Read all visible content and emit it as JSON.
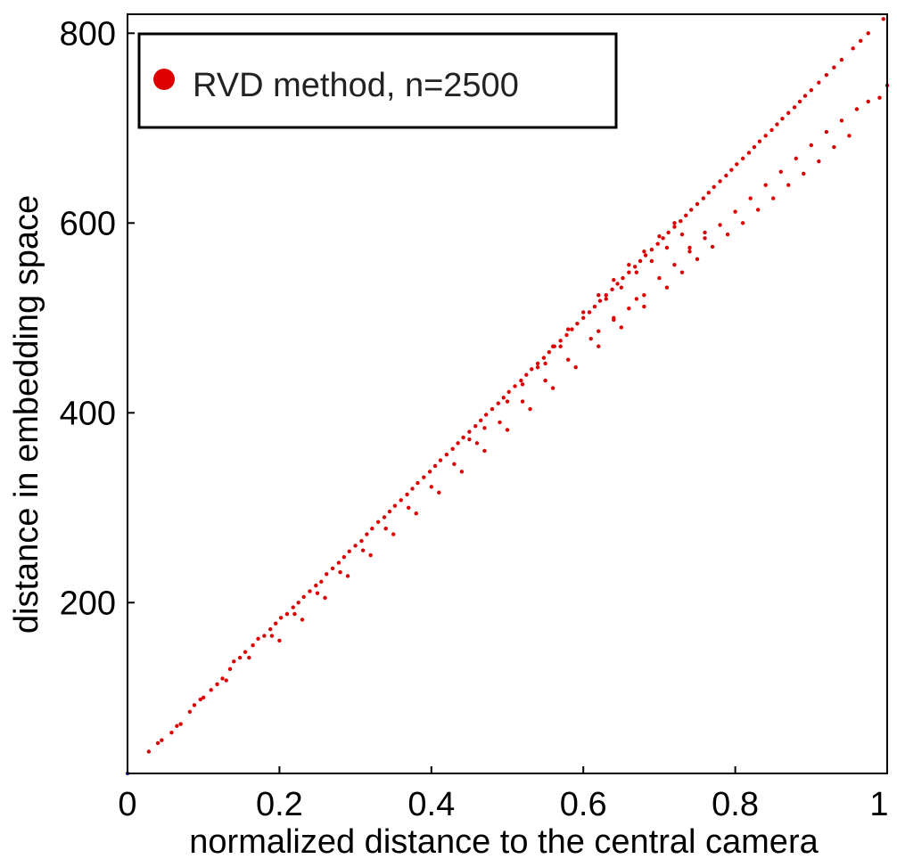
{
  "chart_data": {
    "type": "scatter",
    "title": "",
    "xlabel": "normalized distance to the central camera",
    "ylabel": "distance in embedding space",
    "xlim": [
      0,
      1
    ],
    "ylim": [
      20,
      820
    ],
    "xticks": [
      0,
      0.2,
      0.4,
      0.6,
      0.8,
      1
    ],
    "xtick_labels": [
      "0",
      "0.2",
      "0.4",
      "0.6",
      "0.8",
      "1"
    ],
    "yticks": [
      200,
      400,
      600,
      800
    ],
    "ytick_labels": [
      "200",
      "400",
      "600",
      "800"
    ],
    "grid": false,
    "legend": {
      "position": "top-left",
      "label": "RVD method, n=2500",
      "marker_color": "#dd0000"
    },
    "marker_color": "#dd0000",
    "origin_marker_color": "#2222cc",
    "series": [
      {
        "name": "RVD method, n=2500",
        "points": [
          [
            0.0,
            20
          ],
          [
            0.028,
            43
          ],
          [
            0.04,
            52
          ],
          [
            0.045,
            55
          ],
          [
            0.058,
            63
          ],
          [
            0.065,
            70
          ],
          [
            0.07,
            72
          ],
          [
            0.082,
            85
          ],
          [
            0.088,
            92
          ],
          [
            0.096,
            98
          ],
          [
            0.1,
            100
          ],
          [
            0.11,
            108
          ],
          [
            0.118,
            114
          ],
          [
            0.125,
            120
          ],
          [
            0.135,
            130
          ],
          [
            0.14,
            138
          ],
          [
            0.148,
            142
          ],
          [
            0.155,
            148
          ],
          [
            0.165,
            155
          ],
          [
            0.172,
            162
          ],
          [
            0.18,
            165
          ],
          [
            0.188,
            172
          ],
          [
            0.195,
            178
          ],
          [
            0.202,
            184
          ],
          [
            0.21,
            188
          ],
          [
            0.218,
            195
          ],
          [
            0.225,
            200
          ],
          [
            0.232,
            206
          ],
          [
            0.24,
            212
          ],
          [
            0.248,
            218
          ],
          [
            0.255,
            222
          ],
          [
            0.262,
            230
          ],
          [
            0.27,
            236
          ],
          [
            0.278,
            242
          ],
          [
            0.285,
            248
          ],
          [
            0.292,
            254
          ],
          [
            0.3,
            260
          ],
          [
            0.308,
            265
          ],
          [
            0.315,
            272
          ],
          [
            0.322,
            278
          ],
          [
            0.33,
            285
          ],
          [
            0.338,
            290
          ],
          [
            0.345,
            296
          ],
          [
            0.352,
            302
          ],
          [
            0.36,
            308
          ],
          [
            0.368,
            314
          ],
          [
            0.375,
            320
          ],
          [
            0.382,
            326
          ],
          [
            0.39,
            332
          ],
          [
            0.398,
            338
          ],
          [
            0.405,
            344
          ],
          [
            0.412,
            350
          ],
          [
            0.42,
            356
          ],
          [
            0.428,
            362
          ],
          [
            0.435,
            368
          ],
          [
            0.442,
            374
          ],
          [
            0.45,
            380
          ],
          [
            0.458,
            386
          ],
          [
            0.465,
            392
          ],
          [
            0.472,
            398
          ],
          [
            0.48,
            404
          ],
          [
            0.488,
            410
          ],
          [
            0.495,
            416
          ],
          [
            0.502,
            422
          ],
          [
            0.51,
            428
          ],
          [
            0.518,
            434
          ],
          [
            0.525,
            440
          ],
          [
            0.532,
            446
          ],
          [
            0.54,
            452
          ],
          [
            0.548,
            458
          ],
          [
            0.555,
            464
          ],
          [
            0.562,
            470
          ],
          [
            0.57,
            476
          ],
          [
            0.578,
            482
          ],
          [
            0.585,
            488
          ],
          [
            0.592,
            494
          ],
          [
            0.6,
            500
          ],
          [
            0.608,
            506
          ],
          [
            0.615,
            512
          ],
          [
            0.622,
            518
          ],
          [
            0.63,
            524
          ],
          [
            0.638,
            530
          ],
          [
            0.645,
            536
          ],
          [
            0.652,
            542
          ],
          [
            0.66,
            548
          ],
          [
            0.668,
            554
          ],
          [
            0.675,
            560
          ],
          [
            0.682,
            566
          ],
          [
            0.69,
            572
          ],
          [
            0.698,
            578
          ],
          [
            0.705,
            584
          ],
          [
            0.712,
            590
          ],
          [
            0.72,
            596
          ],
          [
            0.728,
            602
          ],
          [
            0.735,
            608
          ],
          [
            0.742,
            614
          ],
          [
            0.75,
            620
          ],
          [
            0.758,
            626
          ],
          [
            0.765,
            632
          ],
          [
            0.772,
            638
          ],
          [
            0.78,
            644
          ],
          [
            0.788,
            650
          ],
          [
            0.795,
            656
          ],
          [
            0.802,
            662
          ],
          [
            0.81,
            668
          ],
          [
            0.818,
            674
          ],
          [
            0.825,
            680
          ],
          [
            0.832,
            686
          ],
          [
            0.84,
            692
          ],
          [
            0.848,
            698
          ],
          [
            0.855,
            704
          ],
          [
            0.862,
            710
          ],
          [
            0.87,
            716
          ],
          [
            0.878,
            722
          ],
          [
            0.885,
            728
          ],
          [
            0.892,
            734
          ],
          [
            0.9,
            740
          ],
          [
            0.91,
            748
          ],
          [
            0.92,
            756
          ],
          [
            0.93,
            764
          ],
          [
            0.94,
            772
          ],
          [
            0.955,
            784
          ],
          [
            0.965,
            792
          ],
          [
            0.975,
            800
          ],
          [
            0.995,
            815
          ],
          [
            0.13,
            118
          ],
          [
            0.16,
            142
          ],
          [
            0.19,
            165
          ],
          [
            0.22,
            188
          ],
          [
            0.25,
            210
          ],
          [
            0.28,
            232
          ],
          [
            0.31,
            255
          ],
          [
            0.34,
            278
          ],
          [
            0.37,
            300
          ],
          [
            0.4,
            322
          ],
          [
            0.43,
            346
          ],
          [
            0.46,
            368
          ],
          [
            0.49,
            390
          ],
          [
            0.52,
            412
          ],
          [
            0.55,
            434
          ],
          [
            0.58,
            456
          ],
          [
            0.61,
            478
          ],
          [
            0.64,
            498
          ],
          [
            0.67,
            520
          ],
          [
            0.7,
            542
          ],
          [
            0.72,
            556
          ],
          [
            0.74,
            570
          ],
          [
            0.76,
            584
          ],
          [
            0.78,
            598
          ],
          [
            0.8,
            612
          ],
          [
            0.82,
            626
          ],
          [
            0.84,
            640
          ],
          [
            0.86,
            654
          ],
          [
            0.88,
            668
          ],
          [
            0.9,
            682
          ],
          [
            0.92,
            696
          ],
          [
            0.94,
            708
          ],
          [
            0.96,
            720
          ],
          [
            0.975,
            728
          ],
          [
            0.99,
            732
          ],
          [
            1.0,
            745
          ],
          [
            0.2,
            160
          ],
          [
            0.23,
            182
          ],
          [
            0.26,
            205
          ],
          [
            0.29,
            228
          ],
          [
            0.32,
            250
          ],
          [
            0.35,
            272
          ],
          [
            0.38,
            294
          ],
          [
            0.41,
            316
          ],
          [
            0.44,
            338
          ],
          [
            0.47,
            360
          ],
          [
            0.5,
            382
          ],
          [
            0.53,
            404
          ],
          [
            0.56,
            426
          ],
          [
            0.59,
            448
          ],
          [
            0.62,
            470
          ],
          [
            0.65,
            490
          ],
          [
            0.68,
            512
          ],
          [
            0.71,
            532
          ],
          [
            0.73,
            548
          ],
          [
            0.75,
            562
          ],
          [
            0.77,
            575
          ],
          [
            0.79,
            588
          ],
          [
            0.81,
            600
          ],
          [
            0.83,
            614
          ],
          [
            0.85,
            626
          ],
          [
            0.87,
            640
          ],
          [
            0.89,
            652
          ],
          [
            0.91,
            665
          ],
          [
            0.93,
            680
          ],
          [
            0.95,
            692
          ],
          [
            0.5,
            412
          ],
          [
            0.52,
            430
          ],
          [
            0.54,
            448
          ],
          [
            0.56,
            470
          ],
          [
            0.58,
            488
          ],
          [
            0.6,
            506
          ],
          [
            0.62,
            524
          ],
          [
            0.64,
            540
          ],
          [
            0.66,
            556
          ],
          [
            0.68,
            570
          ],
          [
            0.7,
            586
          ],
          [
            0.72,
            600
          ],
          [
            0.45,
            372
          ],
          [
            0.47,
            384
          ],
          [
            0.55,
            452
          ],
          [
            0.57,
            470
          ],
          [
            0.63,
            520
          ],
          [
            0.65,
            532
          ],
          [
            0.67,
            548
          ],
          [
            0.69,
            560
          ],
          [
            0.71,
            574
          ],
          [
            0.73,
            588
          ],
          [
            0.66,
            510
          ],
          [
            0.68,
            524
          ],
          [
            0.62,
            486
          ],
          [
            0.64,
            500
          ],
          [
            0.74,
            574
          ],
          [
            0.76,
            590
          ]
        ]
      }
    ]
  }
}
